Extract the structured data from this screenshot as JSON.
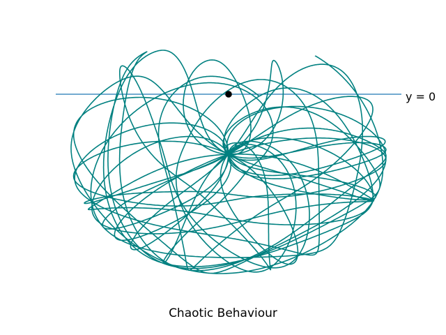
{
  "figure": {
    "caption": "Chaotic Behaviour",
    "reference_label": "y = 0",
    "colors": {
      "trajectory": "#008080",
      "reference_line": "#1f77b4",
      "pivot": "#000000",
      "background": "#ffffff"
    }
  }
}
